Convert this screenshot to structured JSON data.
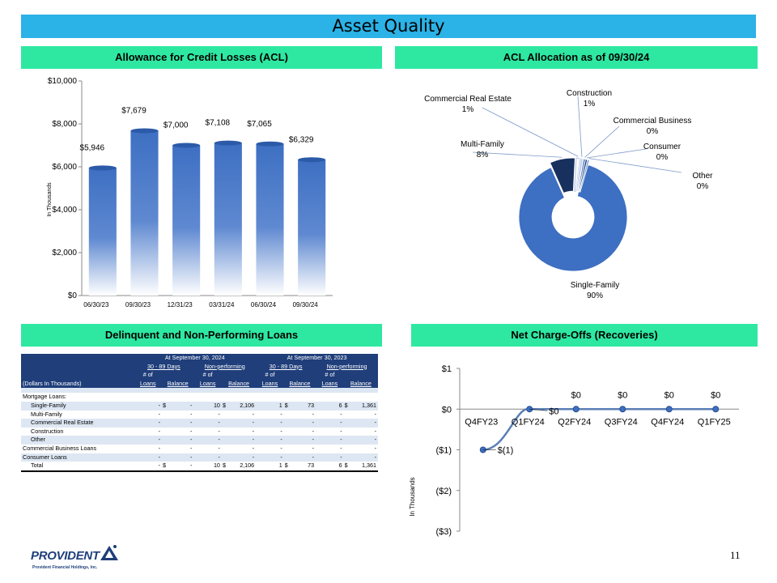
{
  "title": "Asset Quality",
  "page_number": "11",
  "logo": {
    "name": "PROVIDENT",
    "subtitle": "Provident Financial Holdings, Inc."
  },
  "sections": {
    "acl": "Allowance for Credit Losses (ACL)",
    "allocation": "ACL Allocation as of 09/30/24",
    "delinquent": "Delinquent and Non-Performing Loans",
    "nco": "Net Charge-Offs (Recoveries)"
  },
  "chart_data": [
    {
      "type": "bar",
      "categories": [
        "06/30/23",
        "09/30/23",
        "12/31/23",
        "03/31/24",
        "06/30/24",
        "09/30/24"
      ],
      "values": [
        5946,
        7679,
        7000,
        7108,
        7065,
        6329
      ],
      "data_labels": [
        "$5,946",
        "$7,679",
        "$7,000",
        "$7,108",
        "$7,065",
        "$6,329"
      ],
      "ylabel": "In Thousands",
      "ylim": [
        0,
        10000
      ],
      "yticks": [
        "$0",
        "$2,000",
        "$4,000",
        "$6,000",
        "$8,000",
        "$10,000"
      ],
      "grid": false,
      "color": "#3d6fc2"
    },
    {
      "type": "pie",
      "labels": [
        "Single-Family",
        "Multi-Family",
        "Commercial Real Estate",
        "Construction",
        "Commercial Business",
        "Consumer",
        "Other"
      ],
      "values": [
        90,
        8,
        1,
        1,
        0,
        0,
        0
      ],
      "value_labels": [
        "90%",
        "8%",
        "1%",
        "1%",
        "0%",
        "0%",
        "0%"
      ],
      "colors": [
        "#3d6fc2",
        "#17305e",
        "#ffffff",
        "#c9d6ea",
        "#4a76c4",
        "#1f3e7a",
        "#7fa0d8"
      ],
      "style": "doughnut"
    },
    {
      "type": "line",
      "categories": [
        "Q4FY23",
        "Q1FY24",
        "Q2FY24",
        "Q3FY24",
        "Q4FY24",
        "Q1FY25"
      ],
      "values": [
        -1,
        0,
        0,
        0,
        0,
        0
      ],
      "data_labels": [
        "$(1)",
        "$0",
        "$0",
        "$0",
        "$0",
        "$0"
      ],
      "ylabel": "In Thousands",
      "ylim": [
        -3,
        1
      ],
      "yticks": [
        "($3)",
        "($2)",
        "($1)",
        "$0",
        "$1"
      ],
      "color": "#5b7fb5"
    }
  ],
  "table": {
    "group_headers": [
      "At September 30, 2024",
      "At September 30, 2023"
    ],
    "sub_headers": [
      "30 - 89 Days",
      "Non-performing",
      "30 - 89 Days",
      "Non-performing"
    ],
    "col_top": "# of",
    "row_header": "(Dollars In Thousands)",
    "col_bottom": [
      "Loans",
      "Balance",
      "Loans",
      "Balance",
      "Loans",
      "Balance",
      "Loans",
      "Balance"
    ],
    "section_label": "Mortgage Loans:",
    "rows": [
      {
        "label": "Single-Family",
        "indent": true,
        "cells": [
          "-",
          "$",
          "-",
          "10",
          "$",
          "2,106",
          "1",
          "$",
          "73",
          "6",
          "$",
          "1,361"
        ]
      },
      {
        "label": "Multi-Family",
        "indent": true,
        "cells": [
          "-",
          "",
          "-",
          "-",
          "",
          "-",
          "-",
          "",
          "-",
          "-",
          "",
          "-"
        ]
      },
      {
        "label": "Commercial Real Estate",
        "indent": true,
        "cells": [
          "-",
          "",
          "-",
          "-",
          "",
          "-",
          "-",
          "",
          "-",
          "-",
          "",
          "-"
        ]
      },
      {
        "label": "Construction",
        "indent": true,
        "cells": [
          "-",
          "",
          "-",
          "-",
          "",
          "-",
          "-",
          "",
          "-",
          "-",
          "",
          "-"
        ]
      },
      {
        "label": "Other",
        "indent": true,
        "cells": [
          "-",
          "",
          "-",
          "-",
          "",
          "-",
          "-",
          "",
          "-",
          "-",
          "",
          "-"
        ]
      },
      {
        "label": "Commercial Business Loans",
        "indent": false,
        "cells": [
          "-",
          "",
          "-",
          "-",
          "",
          "-",
          "-",
          "",
          "-",
          "-",
          "",
          "-"
        ]
      },
      {
        "label": "Consumer Loans",
        "indent": false,
        "cells": [
          "-",
          "",
          "-",
          "-",
          "",
          "-",
          "-",
          "",
          "-",
          "-",
          "",
          "-"
        ]
      }
    ],
    "total": {
      "label": "Total",
      "cells": [
        "-",
        "$",
        "-",
        "10",
        "$",
        "2,106",
        "1",
        "$",
        "73",
        "6",
        "$",
        "1,361"
      ]
    }
  }
}
